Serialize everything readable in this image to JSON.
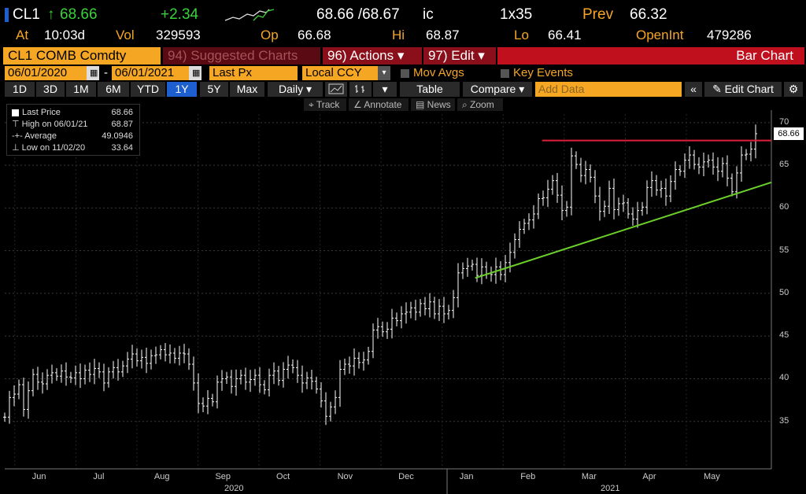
{
  "quote": {
    "ticker": "CL1",
    "arrow": "↑",
    "last": "68.66",
    "change": "+2.34",
    "bid_ask": "68.66 /68.67",
    "cond": "ic",
    "size": "1x35",
    "prev_label": "Prev",
    "prev": "66.32",
    "at_label": "At",
    "time": "10:03d",
    "vol_label": "Vol",
    "vol": "329593",
    "op_label": "Op",
    "open": "66.68",
    "hi_label": "Hi",
    "high": "68.87",
    "lo_label": "Lo",
    "low": "66.41",
    "oi_label": "OpenInt",
    "open_int": "479286"
  },
  "toolbar": {
    "security": "CL1 COMB Comdty",
    "suggested": "94) Suggested Charts",
    "actions": "96) Actions ▾",
    "edit": "97) Edit ▾",
    "chart_type": "Bar Chart"
  },
  "range": {
    "start": "06/01/2020",
    "sep": "-",
    "end": "06/01/2021",
    "field": "Last Px",
    "ccy": "Local CCY",
    "mov_avgs": "Mov Avgs",
    "key_events": "Key Events"
  },
  "periods": [
    "1D",
    "3D",
    "1M",
    "6M",
    "YTD",
    "1Y",
    "5Y",
    "Max"
  ],
  "selected_period": "1Y",
  "controls": {
    "daily": "Daily ▾",
    "table": "Table",
    "compare": "Compare ▾",
    "add_data_placeholder": "Add Data",
    "collapse": "«",
    "edit_chart": "✎ Edit Chart",
    "settings": "⚙"
  },
  "tools": {
    "track": "⌖ Track",
    "annotate": "∠ Annotate",
    "news": "▤ News",
    "zoom": "⌕ Zoom"
  },
  "legend": {
    "last_price_label": "Last Price",
    "last_price": "68.66",
    "high_label": "High on 06/01/21",
    "high": "68.87",
    "average_label": "Average",
    "average": "49.0946",
    "low_label": "Low on 11/02/20",
    "low": "33.64"
  },
  "last_box": "68.66",
  "colors": {
    "accent": "#f5a623",
    "up": "#3ad23a",
    "resistance": "#e0203a",
    "trendline": "#6cd02a",
    "toolbar_red": "#c0101e",
    "selected_blue": "#1e5fd0"
  },
  "chart_data": {
    "type": "bar",
    "ylim": [
      30,
      71
    ],
    "yticks": [
      35,
      40,
      45,
      50,
      55,
      60,
      65,
      70
    ],
    "months": [
      "Jun",
      "Jul",
      "Aug",
      "Sep",
      "Oct",
      "Nov",
      "Dec",
      "Jan",
      "Feb",
      "Mar",
      "Apr",
      "May"
    ],
    "years": [
      "2020",
      "2021"
    ],
    "series": [
      {
        "name": "Last Price",
        "closes": [
          35.5,
          37.8,
          38.2,
          39.3,
          36.4,
          38.6,
          40.5,
          39.6,
          39.4,
          40.4,
          40.7,
          40.3,
          40.9,
          40.2,
          40.1,
          40.7,
          40.0,
          41.0,
          40.5,
          41.2,
          40.8,
          39.5,
          40.8,
          41.3,
          40.8,
          41.5,
          42.3,
          42.9,
          42.1,
          42.5,
          41.8,
          42.7,
          42.8,
          43.4,
          42.8,
          43.0,
          42.4,
          43.0,
          42.9,
          41.7,
          39.5,
          37.1,
          36.8,
          37.7,
          37.3,
          39.6,
          40.0,
          40.2,
          39.1,
          40.0,
          40.4,
          39.6,
          39.9,
          40.4,
          39.3,
          38.7,
          40.4,
          40.9,
          39.8,
          41.1,
          41.6,
          41.3,
          40.4,
          39.5,
          40.1,
          39.7,
          38.8,
          37.4,
          35.6,
          36.7,
          37.8,
          41.1,
          41.7,
          41.5,
          42.4,
          41.9,
          42.2,
          43.2,
          45.7,
          46.1,
          45.5,
          45.8,
          47.1,
          46.8,
          47.6,
          47.8,
          48.3,
          47.8,
          48.8,
          48.2,
          49.0,
          47.6,
          48.5,
          47.6,
          48.0,
          49.5,
          52.4,
          52.9,
          53.2,
          53.4,
          52.1,
          53.1,
          52.3,
          52.2,
          53.1,
          52.2,
          53.6,
          54.8,
          56.3,
          57.5,
          58.2,
          58.6,
          59.3,
          61.1,
          61.2,
          62.2,
          63.2,
          61.5,
          59.7,
          60.1,
          66.1,
          65.1,
          63.8,
          64.5,
          63.6,
          61.4,
          59.6,
          60.2,
          62.3,
          59.8,
          60.5,
          60.6,
          59.3,
          58.7,
          59.7,
          60.1,
          62.4,
          63.2,
          62.1,
          62.3,
          61.4,
          63.1,
          64.5,
          64.3,
          65.6,
          66.2,
          65.1,
          64.8,
          65.4,
          65.6,
          64.8,
          64.3,
          65.2,
          63.5,
          61.9,
          64.1,
          66.2,
          66.3,
          66.9,
          68.7
        ]
      }
    ],
    "resistance": {
      "y": 67.9,
      "from_month": "Mar",
      "to_month": "May"
    },
    "trendline": {
      "from": {
        "date": "Jan",
        "y": 51.8
      },
      "to": {
        "date": "May",
        "y": 63.0
      }
    }
  }
}
